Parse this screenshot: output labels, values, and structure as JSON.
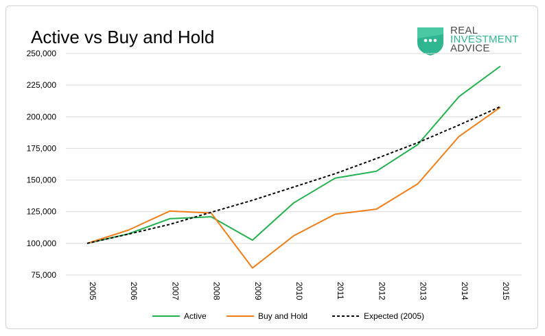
{
  "chart_data": {
    "type": "line",
    "title": "Active vs Buy and Hold",
    "xlabel": "",
    "ylabel": "",
    "x": [
      "2005",
      "2006",
      "2007",
      "2008",
      "2009",
      "2010",
      "2011",
      "2012",
      "2013",
      "2014",
      "2015"
    ],
    "ylim": [
      75000,
      250000
    ],
    "yticks": [
      75000,
      100000,
      125000,
      150000,
      175000,
      200000,
      225000,
      250000
    ],
    "ytick_labels": [
      "75,000",
      "100,000",
      "125,000",
      "150,000",
      "175,000",
      "200,000",
      "225,000",
      "250,000"
    ],
    "grid": true,
    "legend_position": "bottom",
    "series": [
      {
        "name": "Active",
        "color": "#22b14c",
        "dashed": false,
        "values": [
          100000,
          107500,
          119500,
          121000,
          102500,
          132000,
          151500,
          157000,
          178000,
          216000,
          240000
        ]
      },
      {
        "name": "Buy and Hold",
        "color": "#f07d16",
        "dashed": false,
        "values": [
          100000,
          110500,
          125500,
          124000,
          80500,
          106000,
          123000,
          127000,
          147000,
          184500,
          207500
        ]
      },
      {
        "name": "Expected (2005)",
        "color": "#000000",
        "dashed": true,
        "values": [
          100000,
          107300,
          115000,
          124500,
          134000,
          144500,
          155000,
          167000,
          179500,
          193500,
          208000
        ]
      }
    ]
  },
  "logo": {
    "line1": "REAL",
    "line2": "INVESTMENT",
    "line3": "ADVICE",
    "color": "#2fb58f"
  }
}
